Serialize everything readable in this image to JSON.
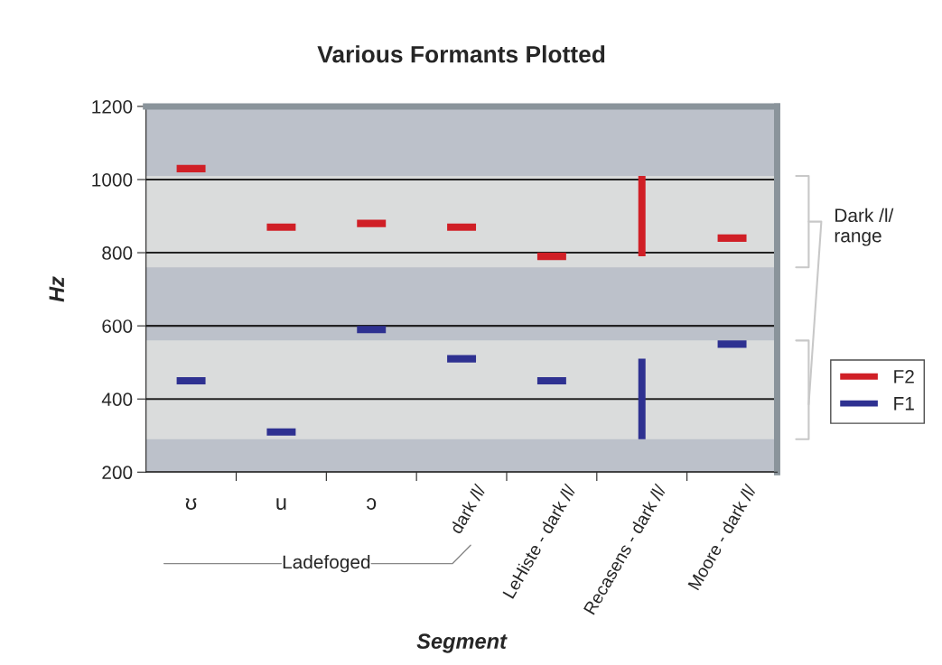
{
  "chart_data": {
    "type": "bar",
    "title": "Various Formants Plotted",
    "xlabel": "Segment",
    "ylabel": "Hz",
    "categories": [
      "ʊ",
      "u",
      "ɔ",
      "dark /l/",
      "LeHiste - dark /l/",
      "Recasens - dark /l/",
      "Moore - dark /l/"
    ],
    "series": [
      {
        "name": "F2",
        "color": "#d01f26",
        "base": [
          1020,
          860,
          870,
          860,
          780,
          790,
          830
        ],
        "values": [
          20,
          20,
          20,
          20,
          20,
          220,
          20
        ]
      },
      {
        "name": "F1",
        "color": "#2e3191",
        "base": [
          440,
          300,
          580,
          500,
          440,
          290,
          540
        ],
        "values": [
          20,
          20,
          20,
          20,
          20,
          220,
          20
        ]
      }
    ],
    "ylim": [
      200,
      1200
    ],
    "yticks": [
      200,
      400,
      600,
      800,
      1000,
      1200
    ],
    "bands": [
      {
        "axis": "y",
        "from": 760,
        "to": 1010,
        "color": "#dadcdc"
      },
      {
        "axis": "y",
        "from": 290,
        "to": 560,
        "color": "#dadcdc"
      }
    ],
    "annotations": [
      "Dark /l/ range",
      "Ladefoged"
    ],
    "grid": "y",
    "legend": "right"
  }
}
